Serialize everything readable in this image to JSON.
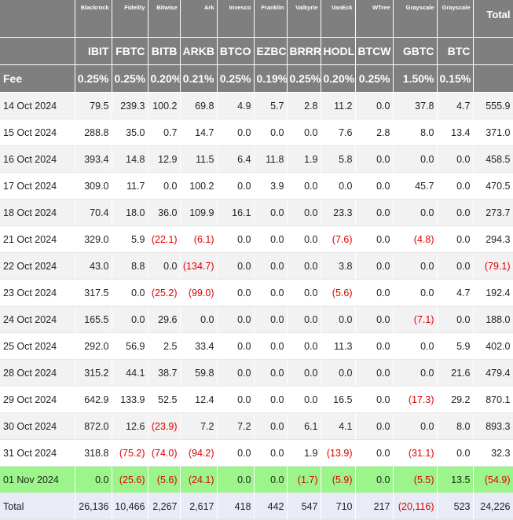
{
  "issuers": [
    "Blackrock",
    "Fidelity",
    "Bitwise",
    "Ark",
    "Invesco",
    "Franklin",
    "Valkyrie",
    "VanEck",
    "WTree",
    "Grayscale",
    "Grayscale"
  ],
  "total_label": "Total",
  "tickers": [
    "IBIT",
    "FBTC",
    "BITB",
    "ARKB",
    "BTCO",
    "EZBC",
    "BRRR",
    "HODL",
    "BTCW",
    "GBTC",
    "BTC"
  ],
  "fee": {
    "label": "Fee",
    "values": [
      "0.25%",
      "0.25%",
      "0.20%",
      "0.21%",
      "0.25%",
      "0.19%",
      "0.25%",
      "0.20%",
      "0.25%",
      "1.50%",
      "0.15%"
    ],
    "total": ""
  },
  "rows": [
    {
      "date": "14 Oct 2024",
      "values": [
        "79.5",
        "239.3",
        "100.2",
        "69.8",
        "4.9",
        "5.7",
        "2.8",
        "11.2",
        "0.0",
        "37.8",
        "4.7"
      ],
      "total": "555.9"
    },
    {
      "date": "15 Oct 2024",
      "values": [
        "288.8",
        "35.0",
        "0.7",
        "14.7",
        "0.0",
        "0.0",
        "0.0",
        "7.6",
        "2.8",
        "8.0",
        "13.4"
      ],
      "total": "371.0"
    },
    {
      "date": "16 Oct 2024",
      "values": [
        "393.4",
        "14.8",
        "12.9",
        "11.5",
        "6.4",
        "11.8",
        "1.9",
        "5.8",
        "0.0",
        "0.0",
        "0.0"
      ],
      "total": "458.5"
    },
    {
      "date": "17 Oct 2024",
      "values": [
        "309.0",
        "11.7",
        "0.0",
        "100.2",
        "0.0",
        "3.9",
        "0.0",
        "0.0",
        "0.0",
        "45.7",
        "0.0"
      ],
      "total": "470.5"
    },
    {
      "date": "18 Oct 2024",
      "values": [
        "70.4",
        "18.0",
        "36.0",
        "109.9",
        "16.1",
        "0.0",
        "0.0",
        "23.3",
        "0.0",
        "0.0",
        "0.0"
      ],
      "total": "273.7"
    },
    {
      "date": "21 Oct 2024",
      "values": [
        "329.0",
        "5.9",
        "(22.1)",
        "(6.1)",
        "0.0",
        "0.0",
        "0.0",
        "(7.6)",
        "0.0",
        "(4.8)",
        "0.0"
      ],
      "total": "294.3"
    },
    {
      "date": "22 Oct 2024",
      "values": [
        "43.0",
        "8.8",
        "0.0",
        "(134.7)",
        "0.0",
        "0.0",
        "0.0",
        "3.8",
        "0.0",
        "0.0",
        "0.0"
      ],
      "total": "(79.1)"
    },
    {
      "date": "23 Oct 2024",
      "values": [
        "317.5",
        "0.0",
        "(25.2)",
        "(99.0)",
        "0.0",
        "0.0",
        "0.0",
        "(5.6)",
        "0.0",
        "0.0",
        "4.7"
      ],
      "total": "192.4"
    },
    {
      "date": "24 Oct 2024",
      "values": [
        "165.5",
        "0.0",
        "29.6",
        "0.0",
        "0.0",
        "0.0",
        "0.0",
        "0.0",
        "0.0",
        "(7.1)",
        "0.0"
      ],
      "total": "188.0"
    },
    {
      "date": "25 Oct 2024",
      "values": [
        "292.0",
        "56.9",
        "2.5",
        "33.4",
        "0.0",
        "0.0",
        "0.0",
        "11.3",
        "0.0",
        "0.0",
        "5.9"
      ],
      "total": "402.0"
    },
    {
      "date": "28 Oct 2024",
      "values": [
        "315.2",
        "44.1",
        "38.7",
        "59.8",
        "0.0",
        "0.0",
        "0.0",
        "0.0",
        "0.0",
        "0.0",
        "21.6"
      ],
      "total": "479.4"
    },
    {
      "date": "29 Oct 2024",
      "values": [
        "642.9",
        "133.9",
        "52.5",
        "12.4",
        "0.0",
        "0.0",
        "0.0",
        "16.5",
        "0.0",
        "(17.3)",
        "29.2"
      ],
      "total": "870.1"
    },
    {
      "date": "30 Oct 2024",
      "values": [
        "872.0",
        "12.6",
        "(23.9)",
        "7.2",
        "7.2",
        "0.0",
        "6.1",
        "4.1",
        "0.0",
        "0.0",
        "8.0"
      ],
      "total": "893.3"
    },
    {
      "date": "31 Oct 2024",
      "values": [
        "318.8",
        "(75.2)",
        "(74.0)",
        "(94.2)",
        "0.0",
        "0.0",
        "1.9",
        "(13.9)",
        "0.0",
        "(31.1)",
        "0.0"
      ],
      "total": "32.3"
    },
    {
      "date": "01 Nov 2024",
      "values": [
        "0.0",
        "(25.6)",
        "(5.6)",
        "(24.1)",
        "0.0",
        "0.0",
        "(1.7)",
        "(5.9)",
        "0.0",
        "(5.5)",
        "13.5"
      ],
      "total": "(54.9)",
      "highlight": true
    }
  ],
  "totals": {
    "label": "Total",
    "values": [
      "26,136",
      "10,466",
      "2,267",
      "2,617",
      "418",
      "442",
      "547",
      "710",
      "217",
      "(20,116)",
      "523"
    ],
    "total": "24,226"
  },
  "colors": {
    "header_bg": "#7f7f7f",
    "highlight_row": "#9cf58a",
    "negative": "#e00000",
    "totals_bg": "#e9ecf6"
  }
}
